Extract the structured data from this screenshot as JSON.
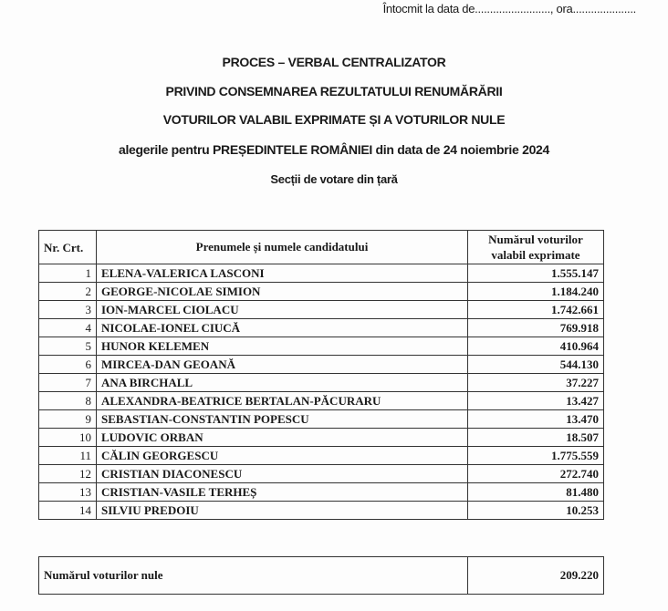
{
  "header_line": "Întocmit la data de........................., ora.....................",
  "titles": [
    "PROCES – VERBAL CENTRALIZATOR",
    "PRIVIND CONSEMNAREA REZULTATULUI RENUMĂRĂRII",
    "VOTURILOR VALABIL EXPRIMATE ȘI A VOTURILOR NULE",
    "alegerile pentru PREȘEDINTELE ROMÂNIEI din data de 24 noiembrie 2024",
    "Secții de votare din țară"
  ],
  "table": {
    "headers": [
      "Nr. Crt.",
      "Prenumele și numele candidatului",
      "Numărul voturilor valabil exprimate"
    ],
    "rows": [
      {
        "nr": "1",
        "name": "ELENA-VALERICA LASCONI",
        "votes": "1.555.147"
      },
      {
        "nr": "2",
        "name": "GEORGE-NICOLAE SIMION",
        "votes": "1.184.240"
      },
      {
        "nr": "3",
        "name": "ION-MARCEL CIOLACU",
        "votes": "1.742.661"
      },
      {
        "nr": "4",
        "name": "NICOLAE-IONEL CIUCĂ",
        "votes": "769.918"
      },
      {
        "nr": "5",
        "name": "HUNOR KELEMEN",
        "votes": "410.964"
      },
      {
        "nr": "6",
        "name": "MIRCEA-DAN GEOANĂ",
        "votes": "544.130"
      },
      {
        "nr": "7",
        "name": "ANA BIRCHALL",
        "votes": "37.227"
      },
      {
        "nr": "8",
        "name": "ALEXANDRA-BEATRICE BERTALAN-PĂCURARU",
        "votes": "13.427"
      },
      {
        "nr": "9",
        "name": "SEBASTIAN-CONSTANTIN POPESCU",
        "votes": "13.470"
      },
      {
        "nr": "10",
        "name": "LUDOVIC ORBAN",
        "votes": "18.507"
      },
      {
        "nr": "11",
        "name": "CĂLIN GEORGESCU",
        "votes": "1.775.559"
      },
      {
        "nr": "12",
        "name": "CRISTIAN DIACONESCU",
        "votes": "272.740"
      },
      {
        "nr": "13",
        "name": "CRISTIAN-VASILE TERHEȘ",
        "votes": "81.480"
      },
      {
        "nr": "14",
        "name": "SILVIU PREDOIU",
        "votes": "10.253"
      }
    ]
  },
  "null_votes": {
    "label": "Numărul voturilor nule",
    "value": "209.220"
  }
}
